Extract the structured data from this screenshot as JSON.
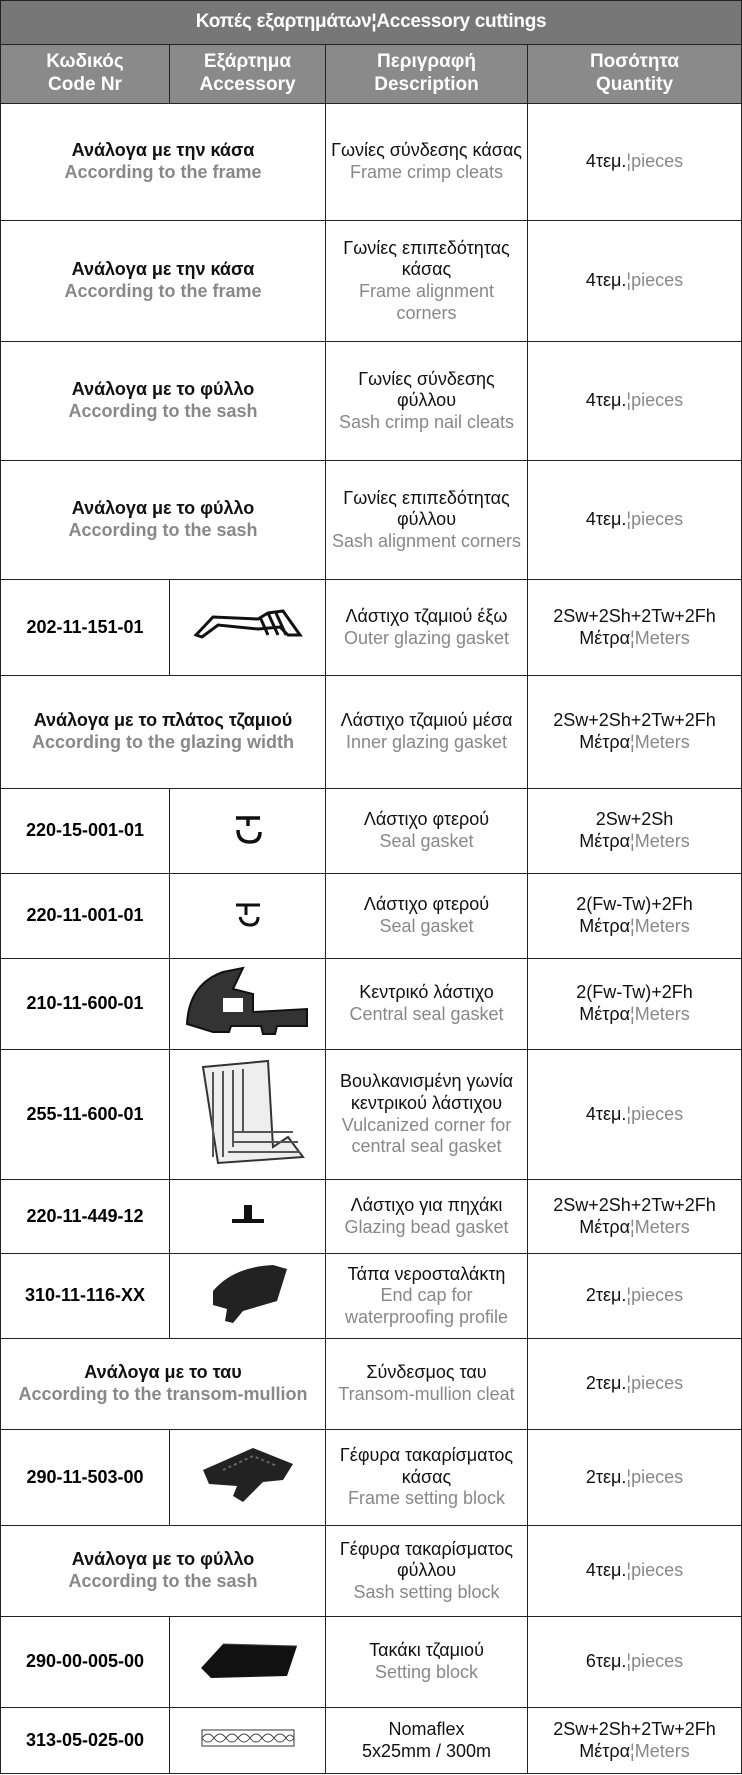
{
  "title": "Κοπές εξαρτημάτων¦Accessory cuttings",
  "header": [
    {
      "el": "Κωδικός",
      "en": "Code Nr"
    },
    {
      "el": "Εξάρτημα",
      "en": "Accessory"
    },
    {
      "el": "Περιγραφή",
      "en": "Description"
    },
    {
      "el": "Ποσότητα",
      "en": "Quantity"
    }
  ],
  "rows": [
    {
      "basis": {
        "el": "Ανάλογα με την κάσα",
        "en": "According to the frame"
      },
      "description": {
        "el": "Γωνίες σύνδεσης κάσας",
        "en": "Frame crimp cleats"
      },
      "quantity": {
        "el": "4τεμ.",
        "divider": "¦",
        "en": "pieces"
      }
    },
    {
      "basis": {
        "el": "Ανάλογα με την κάσα",
        "en": "According to the frame"
      },
      "description": {
        "el": "Γωνίες επιπεδότητας κάσας",
        "en": "Frame alignment corners"
      },
      "quantity": {
        "el": "4τεμ.",
        "divider": "¦",
        "en": "pieces"
      }
    },
    {
      "basis": {
        "el": "Ανάλογα με το φύλλο",
        "en": "According to the sash"
      },
      "description": {
        "el": "Γωνίες σύνδεσης φύλλου",
        "en": "Sash crimp nail cleats"
      },
      "quantity": {
        "el": "4τεμ.",
        "divider": "¦",
        "en": "pieces"
      }
    },
    {
      "basis": {
        "el": "Ανάλογα με το φύλλο",
        "en": "According to the sash"
      },
      "description": {
        "el": "Γωνίες επιπεδότητας φύλλου",
        "en": "Sash alignment corners"
      },
      "quantity": {
        "el": "4τεμ.",
        "divider": "¦",
        "en": "pieces"
      }
    },
    {
      "code": "202-11-151-01",
      "description": {
        "el": "Λάστιχο τζαμιού έξω",
        "en": "Outer glazing gasket"
      },
      "quantity": {
        "formula": "2Sw+2Sh+2Tw+2Fh",
        "el": "Μέτρα",
        "divider": "¦",
        "en": "Meters"
      }
    },
    {
      "basis": {
        "el": "Ανάλογα με το πλάτος τζαμιού",
        "en": "According to the glazing width"
      },
      "description": {
        "el": "Λάστιχο τζαμιού μέσα",
        "en": "Inner glazing gasket"
      },
      "quantity": {
        "formula": "2Sw+2Sh+2Tw+2Fh",
        "el": "Μέτρα",
        "divider": "¦",
        "en": "Meters"
      }
    },
    {
      "code": "220-15-001-01",
      "description": {
        "el": "Λάστιχο φτερού",
        "en": "Seal gasket"
      },
      "quantity": {
        "formula": "2Sw+2Sh",
        "el": "Μέτρα",
        "divider": "¦",
        "en": "Meters"
      }
    },
    {
      "code": "220-11-001-01",
      "description": {
        "el": "Λάστιχο φτερού",
        "en": "Seal gasket"
      },
      "quantity": {
        "formula": "2(Fw-Tw)+2Fh",
        "el": "Μέτρα",
        "divider": "¦",
        "en": "Meters"
      }
    },
    {
      "code": "210-11-600-01",
      "description": {
        "el": "Κεντρικό λάστιχο",
        "en": "Central seal gasket"
      },
      "quantity": {
        "formula": "2(Fw-Tw)+2Fh",
        "el": "Μέτρα",
        "divider": "¦",
        "en": "Meters"
      }
    },
    {
      "code": "255-11-600-01",
      "description": {
        "el": "Βουλκανισμένη γωνία κεντρικού λάστιχου",
        "en": "Vulcanized corner for central seal gasket"
      },
      "quantity": {
        "el": "4τεμ.",
        "divider": "¦",
        "en": "pieces"
      }
    },
    {
      "code": "220-11-449-12",
      "description": {
        "el": "Λάστιχο για πηχάκι",
        "en": "Glazing bead gasket"
      },
      "quantity": {
        "formula": "2Sw+2Sh+2Tw+2Fh",
        "el": "Μέτρα",
        "divider": "¦",
        "en": "Meters"
      }
    },
    {
      "code": "310-11-116-XX",
      "description": {
        "el": "Τάπα νεροσταλάκτη",
        "en": "End cap for waterproofing profile"
      },
      "quantity": {
        "el": "2τεμ.",
        "divider": "¦",
        "en": "pieces"
      }
    },
    {
      "basis": {
        "el": "Ανάλογα με το ταυ",
        "en": "According to the transom-mullion"
      },
      "description": {
        "el": "Σύνδεσμος ταυ",
        "en": "Transom-mullion cleat"
      },
      "quantity": {
        "el": "2τεμ.",
        "divider": "¦",
        "en": "pieces"
      }
    },
    {
      "code": "290-11-503-00",
      "description": {
        "el": "Γέφυρα τακαρίσματος κάσας",
        "en": "Frame setting block"
      },
      "quantity": {
        "el": "2τεμ.",
        "divider": "¦",
        "en": "pieces"
      }
    },
    {
      "basis": {
        "el": "Ανάλογα με το φύλλο",
        "en": "According to the sash"
      },
      "description": {
        "el": "Γέφυρα τακαρίσματος φύλλου",
        "en": "Sash setting block"
      },
      "quantity": {
        "el": "4τεμ.",
        "divider": "¦",
        "en": "pieces"
      }
    },
    {
      "code": "290-00-005-00",
      "description": {
        "el": "Τακάκι τζαμιού",
        "en": "Setting block"
      },
      "quantity": {
        "el": "6τεμ.",
        "divider": "¦",
        "en": "pieces"
      }
    },
    {
      "code": "313-05-025-00",
      "description": {
        "el": "Nomaflex",
        "size": "5x25mm / 300m"
      },
      "quantity": {
        "formula": "2Sw+2Sh+2Tw+2Fh",
        "el": "Μέτρα",
        "divider": "¦",
        "en": "Meters"
      }
    }
  ]
}
